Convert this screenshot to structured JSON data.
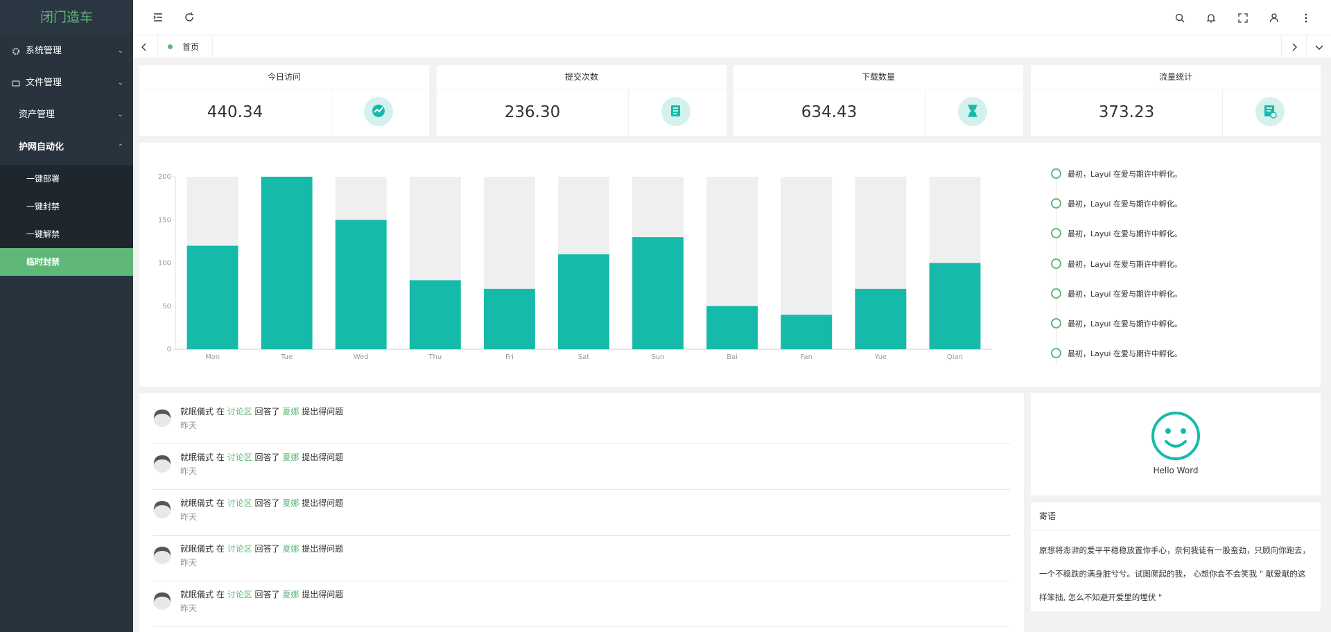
{
  "sidebar": {
    "brand": "闭门造车",
    "menu": [
      "系统管理",
      "文件管理",
      "资产管理",
      "护网自动化"
    ],
    "submenu": [
      "一键部署",
      "一键封禁",
      "一键解禁",
      "临时封禁"
    ]
  },
  "tabs": [
    "首页"
  ],
  "cards": [
    {
      "title": "今日访问",
      "value": "440.34"
    },
    {
      "title": "提交次数",
      "value": "236.30"
    },
    {
      "title": "下载数量",
      "value": "634.43"
    },
    {
      "title": "流量统计",
      "value": "373.23"
    }
  ],
  "chart_data": {
    "type": "bar",
    "categories": [
      "Mon",
      "Tue",
      "Wed",
      "Thu",
      "Fri",
      "Sat",
      "Sun",
      "Bai",
      "Fan",
      "Yue",
      "Qian"
    ],
    "values": [
      120,
      200,
      150,
      80,
      70,
      110,
      130,
      50,
      40,
      70,
      100
    ],
    "color": "#16baaa",
    "background_bars": true,
    "ylim": [
      0,
      200
    ],
    "yticks": [
      0,
      50,
      100,
      150,
      200
    ]
  },
  "timeline": [
    "最初，Layui 在爱与期许中孵化。",
    "最初，Layui 在爱与期许中孵化。",
    "最初，Layui 在爱与期许中孵化。",
    "最初，Layui 在爱与期许中孵化。",
    "最初，Layui 在爱与期许中孵化。",
    "最初，Layui 在爱与期许中孵化。",
    "最初，Layui 在爱与期许中孵化。"
  ],
  "activity": [
    {
      "user": "就眠儀式",
      "w1": "在",
      "place": "讨论区",
      "w2": "回答了",
      "target": "夏娜",
      "w3": "提出得问题",
      "time": "昨天"
    },
    {
      "user": "就眠儀式",
      "w1": "在",
      "place": "讨论区",
      "w2": "回答了",
      "target": "夏娜",
      "w3": "提出得问题",
      "time": "昨天"
    },
    {
      "user": "就眠儀式",
      "w1": "在",
      "place": "讨论区",
      "w2": "回答了",
      "target": "夏娜",
      "w3": "提出得问题",
      "time": "昨天"
    },
    {
      "user": "就眠儀式",
      "w1": "在",
      "place": "讨论区",
      "w2": "回答了",
      "target": "夏娜",
      "w3": "提出得问题",
      "time": "昨天"
    },
    {
      "user": "就眠儀式",
      "w1": "在",
      "place": "讨论区",
      "w2": "回答了",
      "target": "夏娜",
      "w3": "提出得问题",
      "time": "昨天"
    }
  ],
  "profile": {
    "name": "Hello Word"
  },
  "note": {
    "title": "寄语",
    "text": "原想将澎湃的爱平平稳稳放置你手心，奈何我徒有一股蛮劲，只顾向你跑去，一个不稳跌的满身脏兮兮。试图爬起的我， 心想你会不会笑我 \" 献爱献的这样笨拙, 怎么不知避开爱里的埋伏 \""
  }
}
